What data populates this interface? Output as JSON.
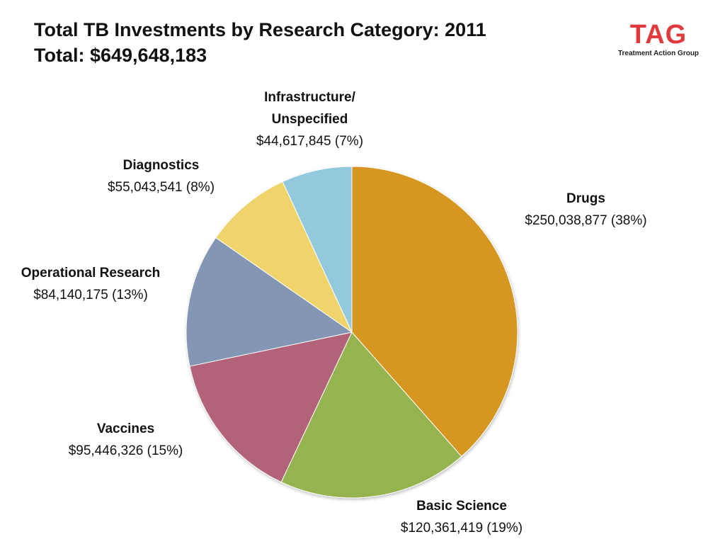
{
  "header": {
    "title": "Total TB Investments by Research Category: 2011",
    "subtitle": "Total: $649,648,183"
  },
  "logo": {
    "mark": "TAG",
    "subtitle": "Treatment Action Group",
    "color": "#e03a3e"
  },
  "chart_data": {
    "type": "pie",
    "title": "Total TB Investments by Research Category: 2011",
    "subtitle": "Total: $649,648,183",
    "start": "12 o'clock",
    "direction": "clockwise",
    "slices": [
      {
        "category": "Drugs",
        "value": 250038877,
        "percent": 38,
        "color": "#d69622",
        "label_name": "Drugs",
        "label_value": "$250,038,877 (38%)"
      },
      {
        "category": "Basic Science",
        "value": 120361419,
        "percent": 19,
        "color": "#95b44f",
        "label_name": "Basic Science",
        "label_value": "$120,361,419 (19%)"
      },
      {
        "category": "Vaccines",
        "value": 95446326,
        "percent": 15,
        "color": "#b36479",
        "label_name": "Vaccines",
        "label_value": "$95,446,326 (15%)"
      },
      {
        "category": "Operational Research",
        "value": 84140175,
        "percent": 13,
        "color": "#8396b4",
        "label_name": "Operational Research",
        "label_value": "$84,140,175 (13%)"
      },
      {
        "category": "Diagnostics",
        "value": 55043541,
        "percent": 8,
        "color": "#efd46c",
        "label_name": "Diagnostics",
        "label_value": "$55,043,541 (8%)"
      },
      {
        "category": "Infrastructure/ Unspecified",
        "value": 44617845,
        "percent": 7,
        "color": "#92c9dd",
        "label_name": "Infrastructure/\nUnspecified",
        "label_value": "$44,617,845 (7%)"
      }
    ]
  }
}
